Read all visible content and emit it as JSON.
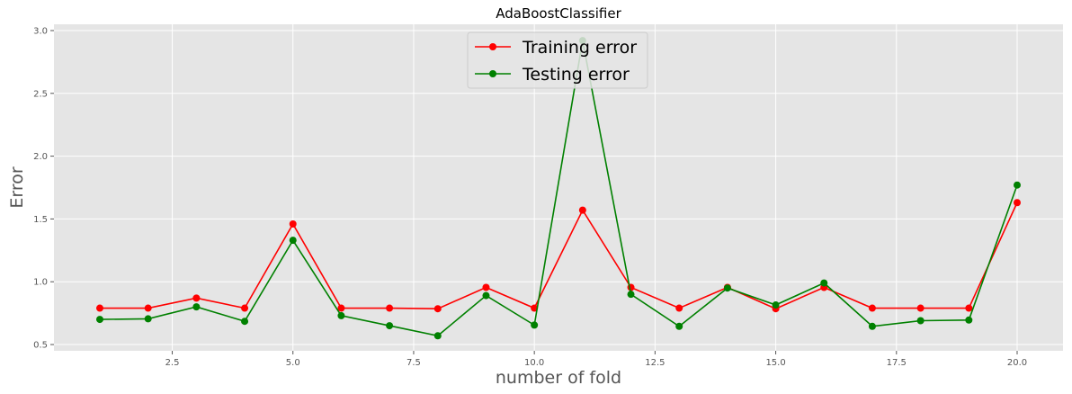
{
  "chart_data": {
    "type": "line",
    "title": "AdaBoostClassifier",
    "xlabel": "number of fold",
    "ylabel": "Error",
    "xlim": [
      0.05,
      20.95
    ],
    "ylim": [
      0.45,
      3.05
    ],
    "xticks": [
      2.5,
      5.0,
      7.5,
      10.0,
      12.5,
      15.0,
      17.5,
      20.0
    ],
    "xtick_labels": [
      "2.5",
      "5.0",
      "7.5",
      "10.0",
      "12.5",
      "15.0",
      "17.5",
      "20.0"
    ],
    "yticks": [
      0.5,
      1.0,
      1.5,
      2.0,
      2.5,
      3.0
    ],
    "ytick_labels": [
      "0.5",
      "1.0",
      "1.5",
      "2.0",
      "2.5",
      "3.0"
    ],
    "grid": true,
    "legend_position": "top-center",
    "x": [
      1,
      2,
      3,
      4,
      5,
      6,
      7,
      8,
      9,
      10,
      11,
      12,
      13,
      14,
      15,
      16,
      17,
      18,
      19,
      20
    ],
    "series": [
      {
        "name": "Training error",
        "color": "#ff0000",
        "values": [
          0.79,
          0.79,
          0.87,
          0.79,
          1.46,
          0.79,
          0.79,
          0.785,
          0.955,
          0.79,
          1.57,
          0.955,
          0.79,
          0.955,
          0.785,
          0.955,
          0.79,
          0.79,
          0.79,
          1.63
        ]
      },
      {
        "name": "Testing error",
        "color": "#008000",
        "values": [
          0.7,
          0.705,
          0.8,
          0.685,
          1.33,
          0.73,
          0.65,
          0.57,
          0.89,
          0.655,
          2.92,
          0.9,
          0.645,
          0.95,
          0.815,
          0.99,
          0.645,
          0.69,
          0.695,
          1.77
        ]
      }
    ],
    "colors": {
      "plot_background": "#e5e5e5",
      "grid": "#ffffff"
    }
  }
}
